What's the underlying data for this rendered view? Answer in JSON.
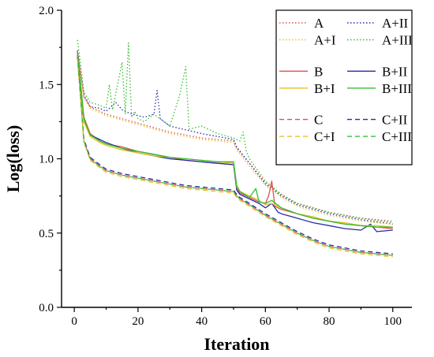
{
  "chart_data": {
    "type": "line",
    "xlabel": "Iteration",
    "ylabel": "Log(loss)",
    "xlim": [
      -4,
      106
    ],
    "ylim": [
      0.0,
      2.0
    ],
    "xticks": [
      0,
      20,
      40,
      60,
      80,
      100
    ],
    "yticks": [
      0.0,
      0.5,
      1.0,
      1.5,
      2.0
    ],
    "x_tick_labels": [
      "0",
      "20",
      "40",
      "60",
      "80",
      "100"
    ],
    "y_tick_labels": [
      "0.0",
      "0.5",
      "1.0",
      "1.5",
      "2.0"
    ],
    "grid": false,
    "legend_position": "top-right",
    "series_colors": {
      "red": "#e05050",
      "blue": "#2a2aa8",
      "yellow": "#e8c020",
      "green": "#30c030"
    },
    "series": [
      {
        "name": "A",
        "color": "#e05050",
        "dash": "dotted",
        "x": [
          1,
          3,
          5,
          10,
          20,
          30,
          40,
          50,
          51,
          55,
          60,
          65,
          70,
          80,
          90,
          100
        ],
        "y": [
          1.72,
          1.42,
          1.35,
          1.3,
          1.24,
          1.18,
          1.14,
          1.12,
          1.07,
          0.97,
          0.84,
          0.76,
          0.7,
          0.64,
          0.6,
          0.58
        ]
      },
      {
        "name": "A+II",
        "color": "#2a2aa8",
        "dash": "dotted",
        "x": [
          1,
          3,
          5,
          8,
          10,
          13,
          15,
          17,
          20,
          22,
          25,
          26,
          27,
          30,
          40,
          50,
          51,
          55,
          60,
          65,
          70,
          80,
          90,
          100
        ],
        "y": [
          1.73,
          1.43,
          1.35,
          1.34,
          1.32,
          1.38,
          1.33,
          1.31,
          1.29,
          1.28,
          1.3,
          1.46,
          1.27,
          1.22,
          1.17,
          1.13,
          1.08,
          0.97,
          0.83,
          0.75,
          0.69,
          0.63,
          0.59,
          0.56
        ]
      },
      {
        "name": "A+I",
        "color": "#e8c020",
        "dash": "dotted",
        "x": [
          1,
          3,
          5,
          10,
          20,
          30,
          40,
          50,
          51,
          55,
          60,
          65,
          70,
          80,
          90,
          100
        ],
        "y": [
          1.71,
          1.41,
          1.34,
          1.29,
          1.23,
          1.17,
          1.13,
          1.11,
          1.06,
          0.95,
          0.82,
          0.74,
          0.68,
          0.62,
          0.58,
          0.56
        ]
      },
      {
        "name": "A+III",
        "color": "#30c030",
        "dash": "dotted",
        "x": [
          1,
          3,
          5,
          8,
          10,
          11,
          12,
          15,
          16,
          17,
          18,
          19,
          20,
          22,
          25,
          30,
          33,
          35,
          36,
          40,
          45,
          50,
          52,
          53,
          54,
          55,
          60,
          65,
          70,
          80,
          90,
          100
        ],
        "y": [
          1.8,
          1.45,
          1.38,
          1.36,
          1.34,
          1.5,
          1.33,
          1.65,
          1.3,
          1.78,
          1.28,
          1.32,
          1.27,
          1.25,
          1.3,
          1.22,
          1.42,
          1.62,
          1.2,
          1.22,
          1.17,
          1.14,
          1.12,
          1.18,
          1.05,
          1.0,
          0.85,
          0.76,
          0.7,
          0.64,
          0.6,
          0.57
        ]
      },
      {
        "name": "B",
        "color": "#e05050",
        "dash": "solid",
        "x": [
          1,
          3,
          5,
          8,
          10,
          15,
          20,
          25,
          30,
          35,
          40,
          45,
          50,
          51,
          52,
          55,
          58,
          60,
          61,
          62,
          63,
          65,
          70,
          75,
          80,
          85,
          90,
          95,
          100
        ],
        "y": [
          1.72,
          1.28,
          1.17,
          1.12,
          1.1,
          1.08,
          1.05,
          1.03,
          1.01,
          0.99,
          0.98,
          0.97,
          0.96,
          0.8,
          0.77,
          0.74,
          0.71,
          0.7,
          0.75,
          0.85,
          0.68,
          0.66,
          0.63,
          0.6,
          0.58,
          0.56,
          0.55,
          0.54,
          0.53
        ]
      },
      {
        "name": "B+II",
        "color": "#2a2aa8",
        "dash": "solid",
        "x": [
          1,
          3,
          5,
          8,
          10,
          15,
          20,
          25,
          30,
          35,
          40,
          45,
          50,
          51,
          52,
          55,
          58,
          60,
          62,
          64,
          65,
          70,
          75,
          80,
          85,
          90,
          93,
          95,
          100
        ],
        "y": [
          1.7,
          1.26,
          1.16,
          1.13,
          1.11,
          1.07,
          1.04,
          1.02,
          1.0,
          0.99,
          0.98,
          0.97,
          0.96,
          0.79,
          0.76,
          0.73,
          0.7,
          0.67,
          0.7,
          0.64,
          0.63,
          0.6,
          0.57,
          0.55,
          0.53,
          0.52,
          0.56,
          0.51,
          0.52
        ]
      },
      {
        "name": "B+I",
        "color": "#e8c020",
        "dash": "solid",
        "x": [
          1,
          3,
          5,
          8,
          10,
          15,
          20,
          25,
          30,
          35,
          40,
          45,
          50,
          51,
          52,
          55,
          58,
          60,
          62,
          65,
          70,
          75,
          80,
          85,
          90,
          95,
          100
        ],
        "y": [
          1.69,
          1.25,
          1.15,
          1.11,
          1.09,
          1.06,
          1.04,
          1.02,
          1.01,
          1.0,
          0.99,
          0.98,
          0.97,
          0.81,
          0.78,
          0.75,
          0.72,
          0.69,
          0.7,
          0.67,
          0.63,
          0.61,
          0.58,
          0.57,
          0.55,
          0.55,
          0.54
        ]
      },
      {
        "name": "B+III",
        "color": "#30c030",
        "dash": "solid",
        "x": [
          1,
          3,
          5,
          8,
          10,
          15,
          20,
          25,
          30,
          35,
          40,
          45,
          50,
          51,
          52,
          55,
          57,
          58,
          60,
          62,
          65,
          70,
          75,
          80,
          85,
          90,
          95,
          100
        ],
        "y": [
          1.71,
          1.27,
          1.16,
          1.12,
          1.1,
          1.07,
          1.05,
          1.03,
          1.01,
          1.0,
          0.99,
          0.98,
          0.98,
          0.82,
          0.78,
          0.74,
          0.8,
          0.71,
          0.7,
          0.72,
          0.67,
          0.63,
          0.6,
          0.58,
          0.56,
          0.55,
          0.54,
          0.54
        ]
      },
      {
        "name": "C",
        "color": "#e05050",
        "dash": "dashed",
        "x": [
          1,
          3,
          5,
          8,
          10,
          15,
          20,
          25,
          30,
          35,
          40,
          45,
          50,
          51,
          52,
          55,
          60,
          65,
          70,
          75,
          80,
          85,
          90,
          95,
          100
        ],
        "y": [
          1.68,
          1.12,
          1.0,
          0.95,
          0.92,
          0.89,
          0.87,
          0.85,
          0.83,
          0.81,
          0.8,
          0.79,
          0.78,
          0.75,
          0.73,
          0.69,
          0.62,
          0.56,
          0.5,
          0.45,
          0.41,
          0.39,
          0.37,
          0.36,
          0.35
        ]
      },
      {
        "name": "C+II",
        "color": "#2a2aa8",
        "dash": "dashed",
        "x": [
          1,
          3,
          5,
          8,
          10,
          15,
          20,
          25,
          30,
          35,
          40,
          45,
          50,
          51,
          52,
          55,
          60,
          65,
          70,
          75,
          80,
          85,
          90,
          95,
          100
        ],
        "y": [
          1.69,
          1.13,
          1.01,
          0.96,
          0.93,
          0.9,
          0.88,
          0.86,
          0.84,
          0.82,
          0.81,
          0.8,
          0.79,
          0.76,
          0.74,
          0.7,
          0.63,
          0.57,
          0.51,
          0.46,
          0.42,
          0.4,
          0.38,
          0.37,
          0.36
        ]
      },
      {
        "name": "C+I",
        "color": "#e8c020",
        "dash": "dashed",
        "x": [
          1,
          3,
          5,
          8,
          10,
          15,
          20,
          25,
          30,
          35,
          40,
          45,
          50,
          51,
          52,
          55,
          60,
          65,
          70,
          75,
          80,
          85,
          90,
          95,
          100
        ],
        "y": [
          1.67,
          1.11,
          0.99,
          0.94,
          0.91,
          0.88,
          0.86,
          0.84,
          0.82,
          0.8,
          0.79,
          0.78,
          0.77,
          0.74,
          0.72,
          0.68,
          0.61,
          0.55,
          0.49,
          0.44,
          0.4,
          0.38,
          0.36,
          0.35,
          0.34
        ]
      },
      {
        "name": "C+III",
        "color": "#30c030",
        "dash": "dashed",
        "x": [
          1,
          3,
          5,
          8,
          10,
          15,
          20,
          25,
          30,
          35,
          40,
          45,
          50,
          51,
          52,
          55,
          60,
          65,
          70,
          75,
          80,
          85,
          90,
          95,
          100
        ],
        "y": [
          1.7,
          1.12,
          1.0,
          0.95,
          0.92,
          0.89,
          0.87,
          0.85,
          0.83,
          0.81,
          0.8,
          0.79,
          0.78,
          0.75,
          0.73,
          0.69,
          0.62,
          0.56,
          0.5,
          0.45,
          0.41,
          0.39,
          0.37,
          0.36,
          0.35
        ]
      }
    ]
  }
}
